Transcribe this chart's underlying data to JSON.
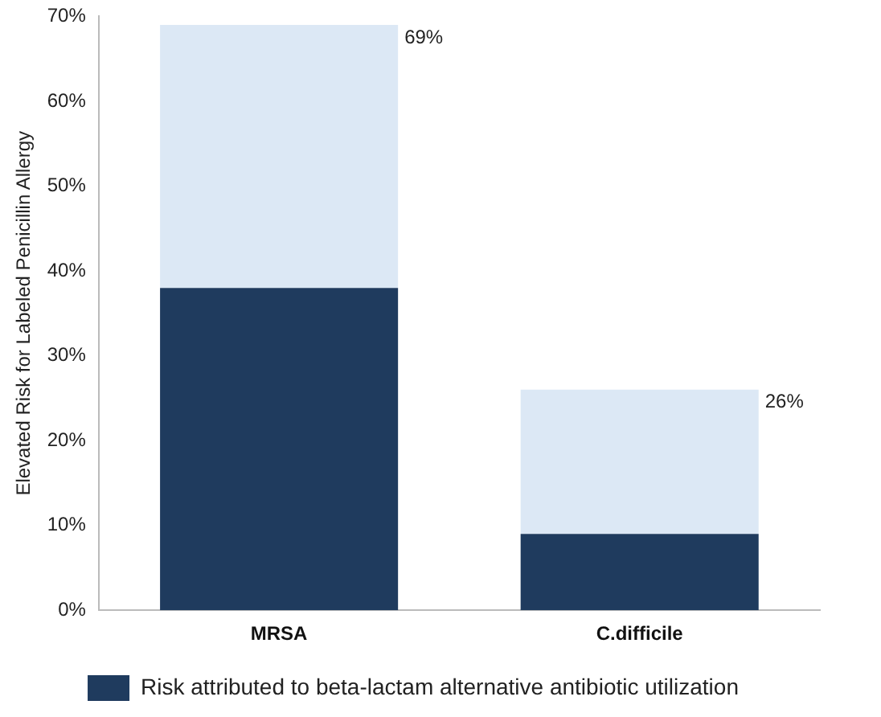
{
  "chart_data": {
    "type": "bar",
    "stacked": true,
    "ylabel": "Elevated Risk for Labeled Penicillin Allergy",
    "categories": [
      "MRSA",
      "C.difficile"
    ],
    "series": [
      {
        "name": "Risk attributed to beta-lactam alternative antibiotic utilization",
        "color": "#1f3b5e",
        "values": [
          38,
          9
        ]
      },
      {
        "color": "#dce8f5",
        "values": [
          31,
          17
        ]
      }
    ],
    "totals": [
      "69%",
      "26%"
    ],
    "ylim": [
      0,
      70
    ],
    "yticks": [
      {
        "value": 0,
        "label": "0%"
      },
      {
        "value": 10,
        "label": "10%"
      },
      {
        "value": 20,
        "label": "20%"
      },
      {
        "value": 30,
        "label": "30%"
      },
      {
        "value": 40,
        "label": "40%"
      },
      {
        "value": 50,
        "label": "50%"
      },
      {
        "value": 60,
        "label": "60%"
      },
      {
        "value": 70,
        "label": "70%"
      }
    ],
    "grid": false,
    "legend": "bottom"
  }
}
